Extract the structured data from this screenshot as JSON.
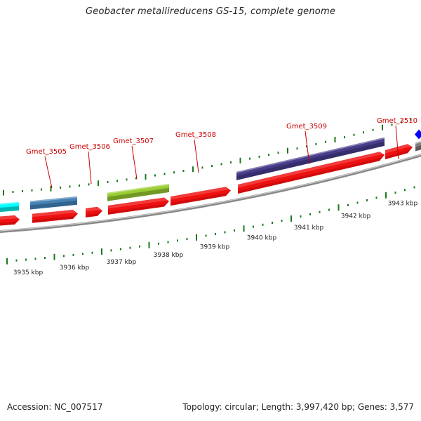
{
  "title": "Geobacter metallireducens GS-15, complete genome",
  "footer": {
    "accession": "Accession: NC_007517",
    "summary": "Topology: circular; Length: 3,997,420 bp; Genes: 3,577"
  },
  "colors": {
    "gene_label": "#cc0000",
    "tick": "#1a7a1a",
    "backbone": "#888888",
    "cds": "#ee1111",
    "scale_text": "#222222"
  },
  "scale_labels": [
    "3935 kbp",
    "3936 kbp",
    "3937 kbp",
    "3938 kbp",
    "3939 kbp",
    "3940 kbp",
    "3941 kbp",
    "3942 kbp",
    "3943 kbp"
  ],
  "genes": [
    {
      "name": "Gmet_3505",
      "feature_color": "#4682b4",
      "feature_dark": "#2f5f8a"
    },
    {
      "name": "Gmet_3506",
      "feature_color": null,
      "feature_dark": null
    },
    {
      "name": "Gmet_3507",
      "feature_color": "#9acd32",
      "feature_dark": "#6b8e23"
    },
    {
      "name": "Gmet_3508",
      "feature_color": null,
      "feature_dark": null
    },
    {
      "name": "Gmet_3509",
      "feature_color": "#483d8b",
      "feature_dark": "#322a66"
    },
    {
      "name": "Gmet_3510",
      "feature_color": null,
      "feature_dark": null
    }
  ],
  "edge_features": {
    "left_feature_color": "#00ffff",
    "right_feature_color": "#0000ff",
    "right_grey_color": "#808080"
  }
}
